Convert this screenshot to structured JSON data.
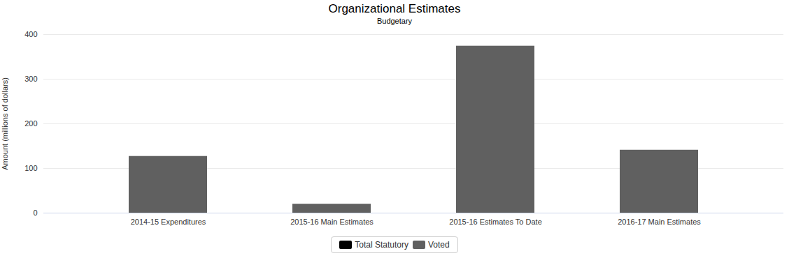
{
  "chart_data": {
    "type": "bar",
    "title": "Organizational Estimates",
    "subtitle": "Budgetary",
    "y_label": "Amount (millions of dollars)",
    "categories": [
      "2014-15 Expenditures",
      "2015-16 Main Estimates",
      "2015-16 Estimates To Date",
      "2016-17 Main Estimates"
    ],
    "series": [
      {
        "name": "Total Statutory",
        "color": "#000000",
        "values": [
          0,
          0,
          0,
          0
        ]
      },
      {
        "name": "Voted",
        "color": "#606060",
        "values": [
          127,
          20,
          374,
          141
        ]
      }
    ],
    "stacked": true,
    "ylim": [
      0,
      400
    ],
    "yticks": [
      0,
      100,
      200,
      300,
      400
    ],
    "grid": true,
    "legend": "bottom"
  }
}
